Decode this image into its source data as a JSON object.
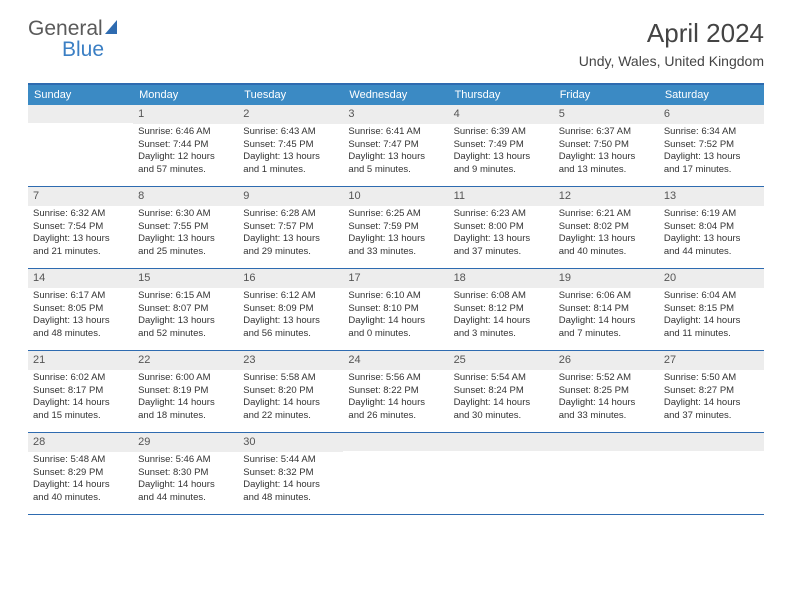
{
  "brand": {
    "part1": "General",
    "part2": "Blue"
  },
  "title": "April 2024",
  "location": "Undy, Wales, United Kingdom",
  "colors": {
    "header_bg": "#3b8ac4",
    "border": "#2e6bb0",
    "daynum_bg": "#ededed",
    "text": "#333333"
  },
  "weekdays": [
    "Sunday",
    "Monday",
    "Tuesday",
    "Wednesday",
    "Thursday",
    "Friday",
    "Saturday"
  ],
  "weeks": [
    [
      {
        "n": "",
        "lines": []
      },
      {
        "n": "1",
        "lines": [
          "Sunrise: 6:46 AM",
          "Sunset: 7:44 PM",
          "Daylight: 12 hours",
          "and 57 minutes."
        ]
      },
      {
        "n": "2",
        "lines": [
          "Sunrise: 6:43 AM",
          "Sunset: 7:45 PM",
          "Daylight: 13 hours",
          "and 1 minutes."
        ]
      },
      {
        "n": "3",
        "lines": [
          "Sunrise: 6:41 AM",
          "Sunset: 7:47 PM",
          "Daylight: 13 hours",
          "and 5 minutes."
        ]
      },
      {
        "n": "4",
        "lines": [
          "Sunrise: 6:39 AM",
          "Sunset: 7:49 PM",
          "Daylight: 13 hours",
          "and 9 minutes."
        ]
      },
      {
        "n": "5",
        "lines": [
          "Sunrise: 6:37 AM",
          "Sunset: 7:50 PM",
          "Daylight: 13 hours",
          "and 13 minutes."
        ]
      },
      {
        "n": "6",
        "lines": [
          "Sunrise: 6:34 AM",
          "Sunset: 7:52 PM",
          "Daylight: 13 hours",
          "and 17 minutes."
        ]
      }
    ],
    [
      {
        "n": "7",
        "lines": [
          "Sunrise: 6:32 AM",
          "Sunset: 7:54 PM",
          "Daylight: 13 hours",
          "and 21 minutes."
        ]
      },
      {
        "n": "8",
        "lines": [
          "Sunrise: 6:30 AM",
          "Sunset: 7:55 PM",
          "Daylight: 13 hours",
          "and 25 minutes."
        ]
      },
      {
        "n": "9",
        "lines": [
          "Sunrise: 6:28 AM",
          "Sunset: 7:57 PM",
          "Daylight: 13 hours",
          "and 29 minutes."
        ]
      },
      {
        "n": "10",
        "lines": [
          "Sunrise: 6:25 AM",
          "Sunset: 7:59 PM",
          "Daylight: 13 hours",
          "and 33 minutes."
        ]
      },
      {
        "n": "11",
        "lines": [
          "Sunrise: 6:23 AM",
          "Sunset: 8:00 PM",
          "Daylight: 13 hours",
          "and 37 minutes."
        ]
      },
      {
        "n": "12",
        "lines": [
          "Sunrise: 6:21 AM",
          "Sunset: 8:02 PM",
          "Daylight: 13 hours",
          "and 40 minutes."
        ]
      },
      {
        "n": "13",
        "lines": [
          "Sunrise: 6:19 AM",
          "Sunset: 8:04 PM",
          "Daylight: 13 hours",
          "and 44 minutes."
        ]
      }
    ],
    [
      {
        "n": "14",
        "lines": [
          "Sunrise: 6:17 AM",
          "Sunset: 8:05 PM",
          "Daylight: 13 hours",
          "and 48 minutes."
        ]
      },
      {
        "n": "15",
        "lines": [
          "Sunrise: 6:15 AM",
          "Sunset: 8:07 PM",
          "Daylight: 13 hours",
          "and 52 minutes."
        ]
      },
      {
        "n": "16",
        "lines": [
          "Sunrise: 6:12 AM",
          "Sunset: 8:09 PM",
          "Daylight: 13 hours",
          "and 56 minutes."
        ]
      },
      {
        "n": "17",
        "lines": [
          "Sunrise: 6:10 AM",
          "Sunset: 8:10 PM",
          "Daylight: 14 hours",
          "and 0 minutes."
        ]
      },
      {
        "n": "18",
        "lines": [
          "Sunrise: 6:08 AM",
          "Sunset: 8:12 PM",
          "Daylight: 14 hours",
          "and 3 minutes."
        ]
      },
      {
        "n": "19",
        "lines": [
          "Sunrise: 6:06 AM",
          "Sunset: 8:14 PM",
          "Daylight: 14 hours",
          "and 7 minutes."
        ]
      },
      {
        "n": "20",
        "lines": [
          "Sunrise: 6:04 AM",
          "Sunset: 8:15 PM",
          "Daylight: 14 hours",
          "and 11 minutes."
        ]
      }
    ],
    [
      {
        "n": "21",
        "lines": [
          "Sunrise: 6:02 AM",
          "Sunset: 8:17 PM",
          "Daylight: 14 hours",
          "and 15 minutes."
        ]
      },
      {
        "n": "22",
        "lines": [
          "Sunrise: 6:00 AM",
          "Sunset: 8:19 PM",
          "Daylight: 14 hours",
          "and 18 minutes."
        ]
      },
      {
        "n": "23",
        "lines": [
          "Sunrise: 5:58 AM",
          "Sunset: 8:20 PM",
          "Daylight: 14 hours",
          "and 22 minutes."
        ]
      },
      {
        "n": "24",
        "lines": [
          "Sunrise: 5:56 AM",
          "Sunset: 8:22 PM",
          "Daylight: 14 hours",
          "and 26 minutes."
        ]
      },
      {
        "n": "25",
        "lines": [
          "Sunrise: 5:54 AM",
          "Sunset: 8:24 PM",
          "Daylight: 14 hours",
          "and 30 minutes."
        ]
      },
      {
        "n": "26",
        "lines": [
          "Sunrise: 5:52 AM",
          "Sunset: 8:25 PM",
          "Daylight: 14 hours",
          "and 33 minutes."
        ]
      },
      {
        "n": "27",
        "lines": [
          "Sunrise: 5:50 AM",
          "Sunset: 8:27 PM",
          "Daylight: 14 hours",
          "and 37 minutes."
        ]
      }
    ],
    [
      {
        "n": "28",
        "lines": [
          "Sunrise: 5:48 AM",
          "Sunset: 8:29 PM",
          "Daylight: 14 hours",
          "and 40 minutes."
        ]
      },
      {
        "n": "29",
        "lines": [
          "Sunrise: 5:46 AM",
          "Sunset: 8:30 PM",
          "Daylight: 14 hours",
          "and 44 minutes."
        ]
      },
      {
        "n": "30",
        "lines": [
          "Sunrise: 5:44 AM",
          "Sunset: 8:32 PM",
          "Daylight: 14 hours",
          "and 48 minutes."
        ]
      },
      {
        "n": "",
        "lines": []
      },
      {
        "n": "",
        "lines": []
      },
      {
        "n": "",
        "lines": []
      },
      {
        "n": "",
        "lines": []
      }
    ]
  ]
}
